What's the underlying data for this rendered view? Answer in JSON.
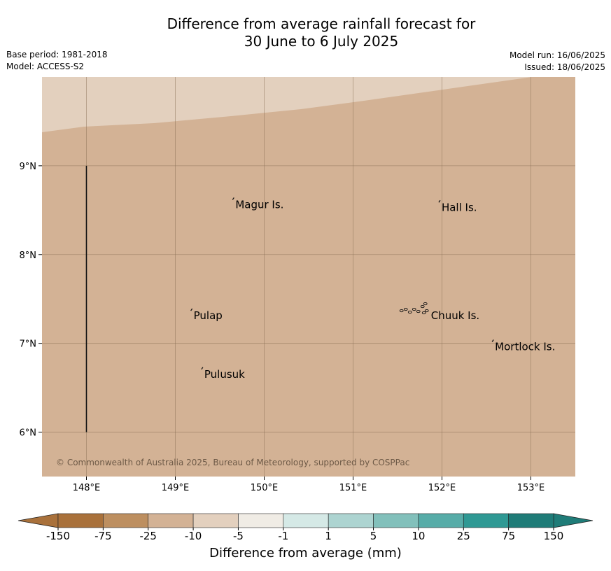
{
  "title": {
    "line1": "Difference from average rainfall forecast for",
    "line2": "30 June to 6 July 2025"
  },
  "info": {
    "base_period": "Base period: 1981-2018",
    "model": "Model: ACCESS-S2",
    "model_run": "Model run: 16/06/2025",
    "issued": "Issued: 18/06/2025"
  },
  "map": {
    "lat_ticks": [
      "9°N",
      "8°N",
      "7°N",
      "6°N"
    ],
    "lon_ticks": [
      "148°E",
      "149°E",
      "150°E",
      "151°E",
      "152°E",
      "153°E"
    ],
    "lat_range": [
      5.5,
      10.0
    ],
    "lon_range": [
      147.5,
      153.5
    ],
    "gridlines": true,
    "background_color": "#d3b295",
    "upper_band_color": "#e3d0be",
    "places": [
      {
        "name": "Magur Is.",
        "lat": 8.57,
        "lon": 149.66
      },
      {
        "name": "Hall Is.",
        "lat": 8.54,
        "lon": 151.98
      },
      {
        "name": "Pulap",
        "lat": 7.32,
        "lon": 149.19
      },
      {
        "name": "Chuuk Is.",
        "lat": 7.32,
        "lon": 151.86
      },
      {
        "name": "Mortlock Is.",
        "lat": 6.97,
        "lon": 152.58
      },
      {
        "name": "Pulusuk",
        "lat": 6.66,
        "lon": 149.31
      }
    ],
    "boundary_line": {
      "lon": 148.0,
      "lat_from": 6.0,
      "lat_to": 9.0
    },
    "copyright": "© Commonwealth of Australia 2025, Bureau of Meteorology, supported by COSPPac"
  },
  "colorbar": {
    "label": "Difference from average (mm)",
    "ticks": [
      "-150",
      "-75",
      "-25",
      "-10",
      "-5",
      "-1",
      "1",
      "5",
      "10",
      "25",
      "75",
      "150"
    ],
    "colors": [
      "#a9713b",
      "#bd8f60",
      "#d3b295",
      "#e3d0be",
      "#f0ece5",
      "#ffffff",
      "#d5e9e6",
      "#add4d1",
      "#82c0bb",
      "#57aca8",
      "#2f9994",
      "#1f7c78"
    ],
    "extend_low_color": "#a9713b",
    "extend_high_color": "#1f7c78"
  }
}
